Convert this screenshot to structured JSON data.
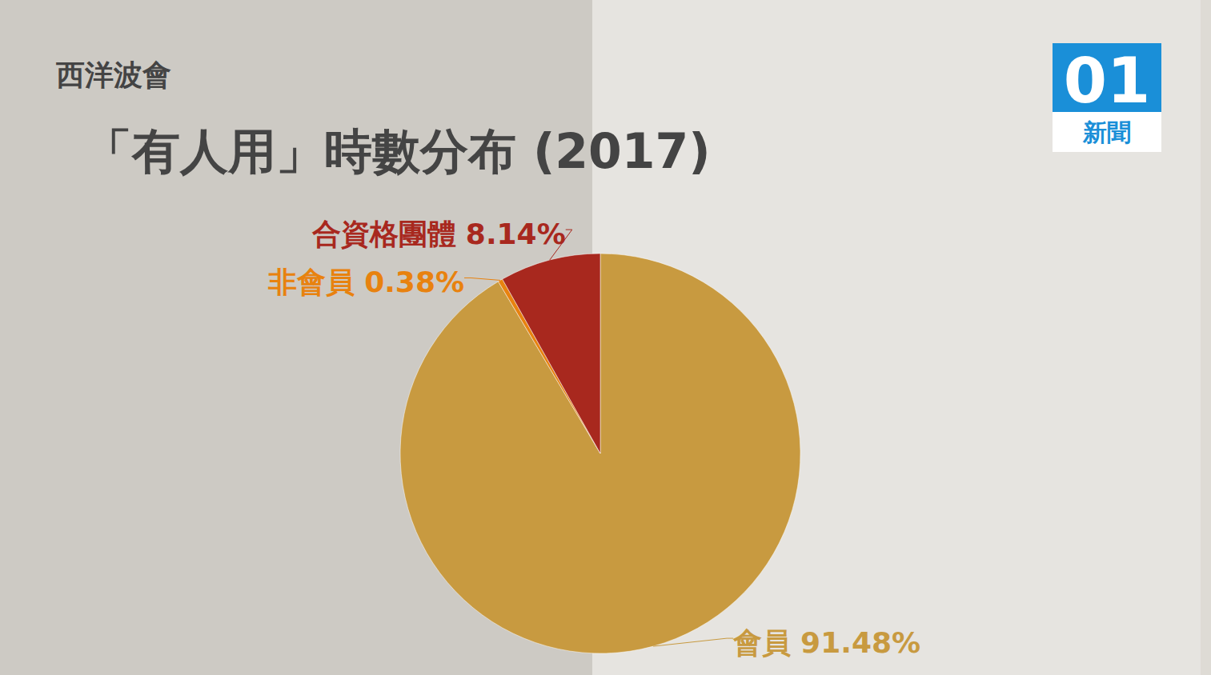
{
  "chart_data": {
    "type": "pie",
    "subtitle": "西洋波會",
    "title": "「有人用」時數分布 (2017)",
    "categories": [
      "會員",
      "非會員",
      "合資格團體"
    ],
    "values": [
      91.48,
      0.38,
      8.14
    ],
    "value_labels": [
      "91.48%",
      "0.38%",
      "8.14%"
    ],
    "colors": [
      "#c89a40",
      "#e8820f",
      "#a8281e"
    ],
    "data_labels": true,
    "annotations": [
      "01",
      "新聞"
    ]
  }
}
